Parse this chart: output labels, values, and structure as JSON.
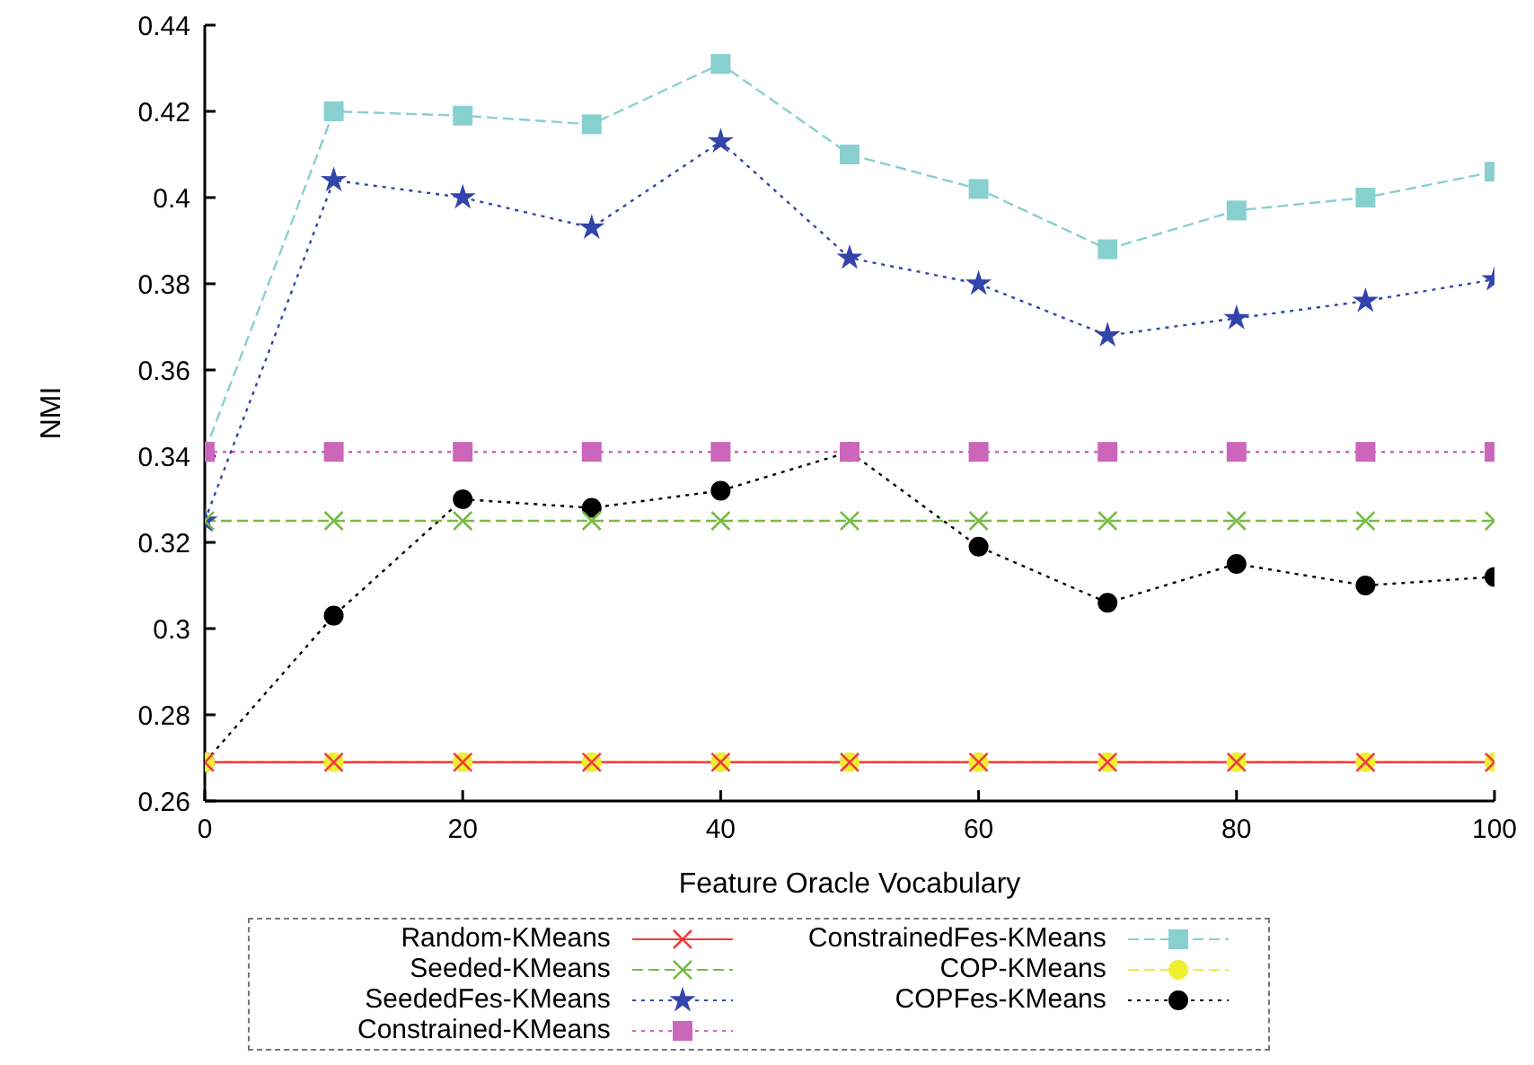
{
  "chart_data": {
    "type": "line",
    "xlabel": "Feature Oracle Vocabulary",
    "ylabel": "NMI",
    "x": [
      0,
      10,
      20,
      30,
      40,
      50,
      60,
      70,
      80,
      90,
      100
    ],
    "xlim": [
      0,
      100
    ],
    "xticks": [
      0,
      20,
      40,
      60,
      80,
      100
    ],
    "ylim": [
      0.26,
      0.44
    ],
    "yticks": [
      0.26,
      0.28,
      0.3,
      0.32,
      0.34,
      0.36,
      0.38,
      0.4,
      0.42,
      0.44
    ],
    "grid": false,
    "legend": "bottom",
    "series": [
      {
        "name": "Random-KMeans",
        "color": "#f03c3c",
        "marker": "cross",
        "line_style": "solid",
        "values": [
          0.269,
          0.269,
          0.269,
          0.269,
          0.269,
          0.269,
          0.269,
          0.269,
          0.269,
          0.269,
          0.269
        ]
      },
      {
        "name": "Seeded-KMeans",
        "color": "#77bb44",
        "marker": "cross",
        "line_style": "dashed",
        "values": [
          0.325,
          0.325,
          0.325,
          0.325,
          0.325,
          0.325,
          0.325,
          0.325,
          0.325,
          0.325,
          0.325
        ]
      },
      {
        "name": "SeededFes-KMeans",
        "color": "#3344aa",
        "marker": "star",
        "line_style": "dotted",
        "values": [
          0.325,
          0.404,
          0.4,
          0.393,
          0.413,
          0.386,
          0.38,
          0.368,
          0.372,
          0.376,
          0.381
        ]
      },
      {
        "name": "Constrained-KMeans",
        "color": "#cc66bb",
        "marker": "square",
        "line_style": "dotted",
        "values": [
          0.341,
          0.341,
          0.341,
          0.341,
          0.341,
          0.341,
          0.341,
          0.341,
          0.341,
          0.341,
          0.341
        ]
      },
      {
        "name": "ConstrainedFes-KMeans",
        "color": "#88d0d0",
        "marker": "square",
        "line_style": "dashed",
        "values": [
          0.341,
          0.42,
          0.419,
          0.417,
          0.431,
          0.41,
          0.402,
          0.388,
          0.397,
          0.4,
          0.406
        ]
      },
      {
        "name": "COP-KMeans",
        "color": "#eeee33",
        "marker": "circle",
        "line_style": "dashed",
        "values": [
          0.269,
          0.269,
          0.269,
          0.269,
          0.269,
          0.269,
          0.269,
          0.269,
          0.269,
          0.269,
          0.269
        ]
      },
      {
        "name": "COPFes-KMeans",
        "color": "#000000",
        "marker": "circle",
        "line_style": "dotted",
        "values": [
          0.269,
          0.303,
          0.33,
          0.328,
          0.332,
          0.341,
          0.319,
          0.306,
          0.315,
          0.31,
          0.312
        ]
      }
    ]
  }
}
